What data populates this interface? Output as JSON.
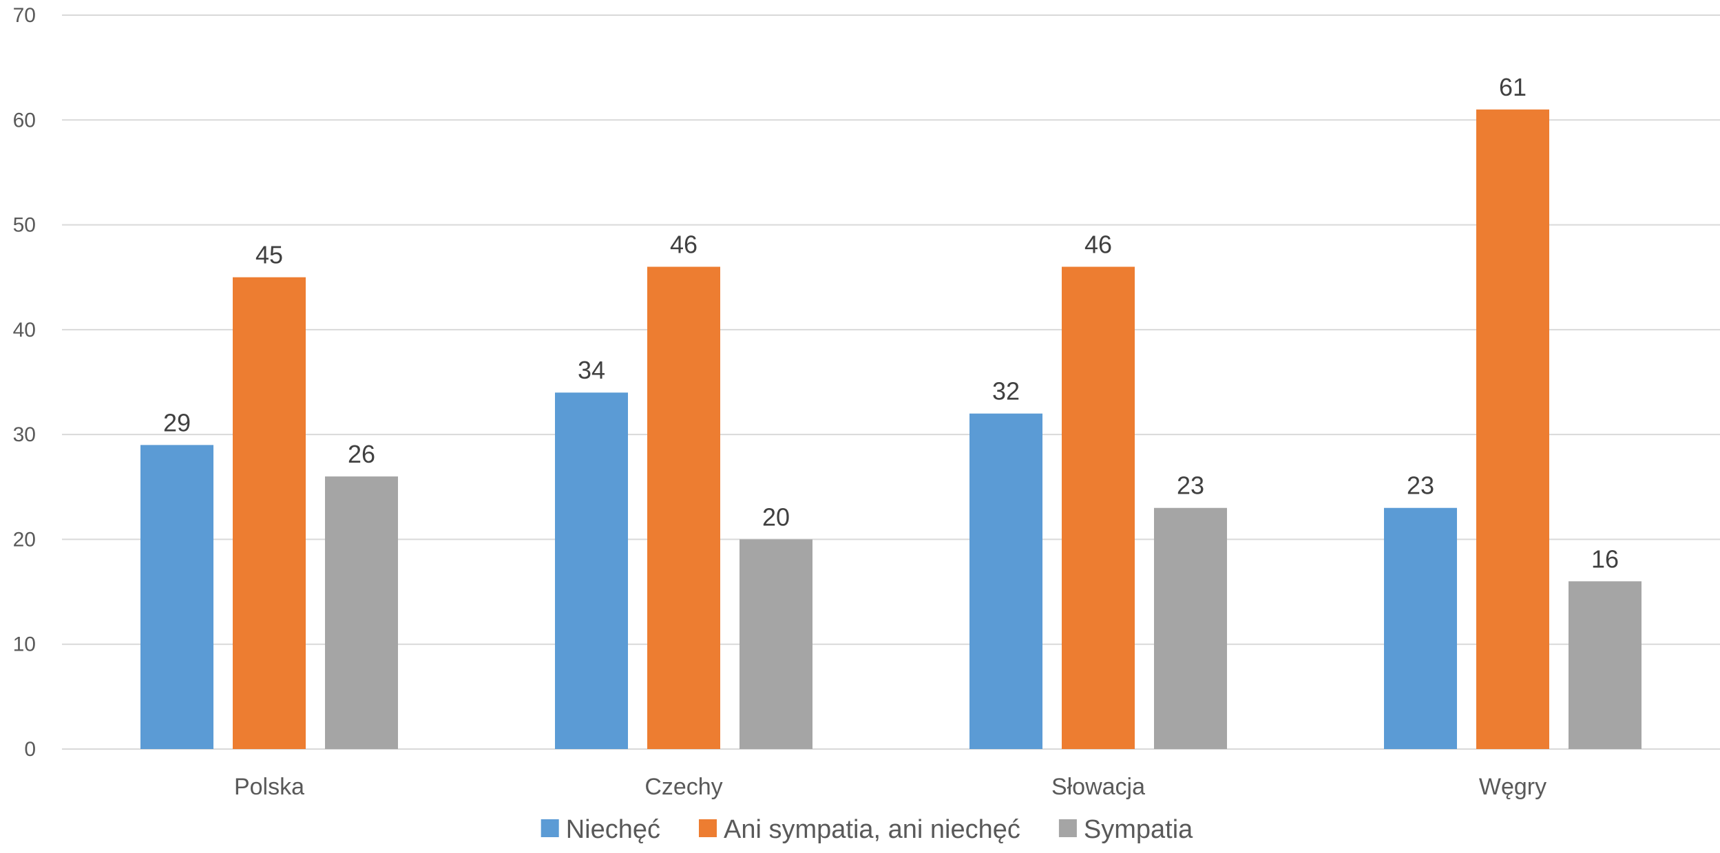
{
  "chart_data": {
    "type": "bar",
    "title": "",
    "xlabel": "",
    "ylabel": "",
    "categories": [
      "Polska",
      "Czechy",
      "Słowacja",
      "Węgry"
    ],
    "series": [
      {
        "name": "Niechęć",
        "color": "#5b9bd5",
        "values": [
          29,
          34,
          32,
          23
        ]
      },
      {
        "name": "Ani sympatia, ani niechęć",
        "color": "#ed7d31",
        "values": [
          45,
          46,
          46,
          61
        ]
      },
      {
        "name": "Sympatia",
        "color": "#a5a5a5",
        "values": [
          26,
          20,
          23,
          16
        ]
      }
    ],
    "ylim": [
      0,
      70
    ],
    "yticks": [
      0,
      10,
      20,
      30,
      40,
      50,
      60,
      70
    ],
    "grid": true,
    "legend_position": "bottom",
    "data_labels": true
  }
}
